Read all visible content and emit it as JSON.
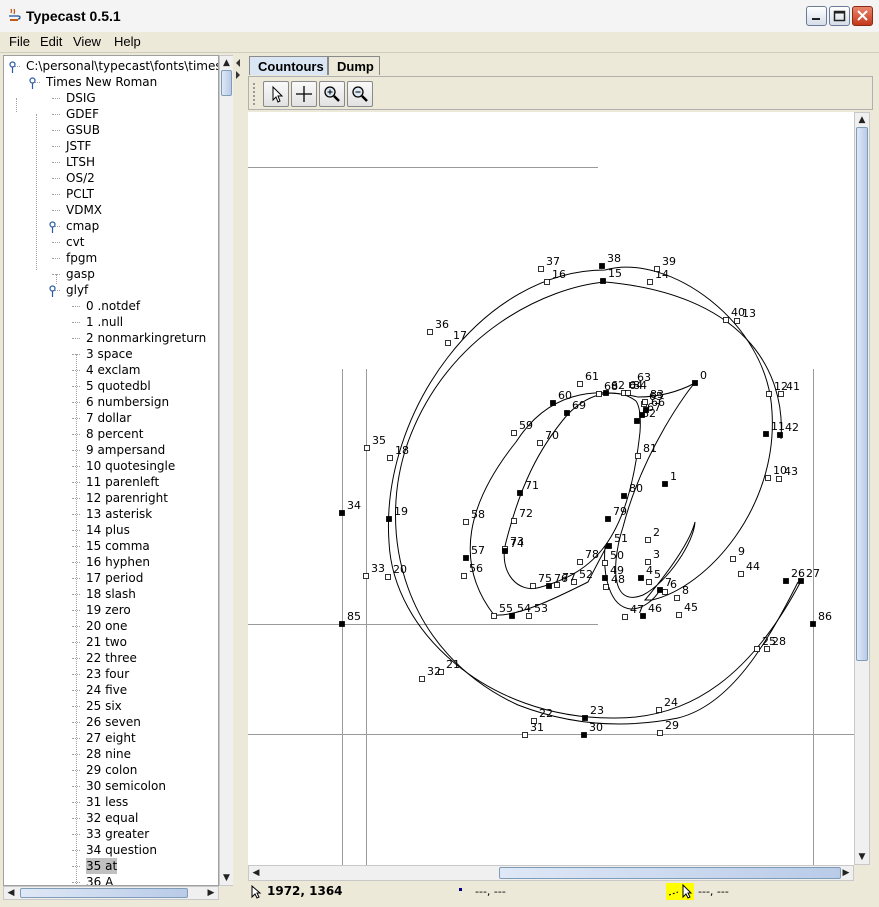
{
  "window": {
    "title": "Typecast 0.5.1"
  },
  "menu": [
    "File",
    "Edit",
    "View",
    "Help"
  ],
  "tree": {
    "root": "C:\\personal\\typecast\\fonts\\times.ttf",
    "font": "Times New Roman",
    "tables": [
      "DSIG",
      "GDEF",
      "GSUB",
      "JSTF",
      "LTSH",
      "OS/2",
      "PCLT",
      "VDMX",
      "cmap",
      "cvt",
      "fpgm",
      "gasp",
      "glyf"
    ],
    "glyphs": [
      "0 .notdef",
      "1 .null",
      "2 nonmarkingreturn",
      "3 space",
      "4 exclam",
      "5 quotedbl",
      "6 numbersign",
      "7 dollar",
      "8 percent",
      "9 ampersand",
      "10 quotesingle",
      "11 parenleft",
      "12 parenright",
      "13 asterisk",
      "14 plus",
      "15 comma",
      "16 hyphen",
      "17 period",
      "18 slash",
      "19 zero",
      "20 one",
      "21 two",
      "22 three",
      "23 four",
      "24 five",
      "25 six",
      "26 seven",
      "27 eight",
      "28 nine",
      "29 colon",
      "30 semicolon",
      "31 less",
      "32 equal",
      "33 greater",
      "34 question",
      "35 at",
      "36 A"
    ],
    "selected_glyph": "35 at"
  },
  "tabs": [
    {
      "label": "Countours",
      "active": true
    },
    {
      "label": "Dump",
      "active": false
    }
  ],
  "toolbar": [
    "pointer-tool",
    "crosshair-tool",
    "zoom-in-tool",
    "zoom-out-tool"
  ],
  "status": {
    "coords": "1972, 1364",
    "field2": "---, ---",
    "field3": "---, ---"
  },
  "glyph_points": [
    {
      "l": "0",
      "on": true
    },
    {
      "l": "1",
      "on": true
    },
    {
      "l": "2",
      "on": false
    },
    {
      "l": "3",
      "on": false
    },
    {
      "l": "4",
      "on": true
    },
    {
      "l": "5",
      "on": false
    },
    {
      "l": "6",
      "on": false
    },
    {
      "l": "7",
      "on": true
    },
    {
      "l": "8",
      "on": false
    },
    {
      "l": "9",
      "on": false
    },
    {
      "l": "10",
      "on": false
    },
    {
      "l": "11",
      "on": true
    },
    {
      "l": "12",
      "on": false
    },
    {
      "l": "13",
      "on": false
    },
    {
      "l": "14",
      "on": false
    },
    {
      "l": "15",
      "on": true
    },
    {
      "l": "16",
      "on": false
    },
    {
      "l": "17",
      "on": false
    },
    {
      "l": "18",
      "on": false
    },
    {
      "l": "19",
      "on": true
    },
    {
      "l": "20",
      "on": false
    },
    {
      "l": "21",
      "on": false
    },
    {
      "l": "22",
      "on": false
    },
    {
      "l": "23",
      "on": true
    },
    {
      "l": "24",
      "on": false
    },
    {
      "l": "25",
      "on": false
    },
    {
      "l": "26",
      "on": true
    },
    {
      "l": "27",
      "on": true
    },
    {
      "l": "28",
      "on": false
    },
    {
      "l": "29",
      "on": false
    },
    {
      "l": "30",
      "on": true
    },
    {
      "l": "31",
      "on": false
    },
    {
      "l": "32",
      "on": false
    },
    {
      "l": "33",
      "on": false
    },
    {
      "l": "34",
      "on": true
    },
    {
      "l": "35",
      "on": false
    },
    {
      "l": "36",
      "on": false
    },
    {
      "l": "37",
      "on": false
    },
    {
      "l": "38",
      "on": true
    },
    {
      "l": "39",
      "on": false
    },
    {
      "l": "40",
      "on": false
    },
    {
      "l": "41",
      "on": false
    },
    {
      "l": "42",
      "on": true
    },
    {
      "l": "43",
      "on": false
    },
    {
      "l": "44",
      "on": false
    },
    {
      "l": "45",
      "on": false
    },
    {
      "l": "46",
      "on": true
    },
    {
      "l": "47",
      "on": false
    },
    {
      "l": "48",
      "on": false
    },
    {
      "l": "49",
      "on": true
    },
    {
      "l": "50",
      "on": false
    },
    {
      "l": "51",
      "on": true
    },
    {
      "l": "52",
      "on": false
    },
    {
      "l": "53",
      "on": false
    },
    {
      "l": "54",
      "on": true
    },
    {
      "l": "55",
      "on": false
    },
    {
      "l": "56",
      "on": false
    },
    {
      "l": "57",
      "on": true
    },
    {
      "l": "58",
      "on": false
    },
    {
      "l": "59",
      "on": false
    },
    {
      "l": "60",
      "on": true
    },
    {
      "l": "61",
      "on": false
    },
    {
      "l": "62",
      "on": true
    },
    {
      "l": "63",
      "on": false
    },
    {
      "l": "64",
      "on": false
    },
    {
      "l": "65",
      "on": false
    },
    {
      "l": "66",
      "on": true
    },
    {
      "l": "67",
      "on": true
    },
    {
      "l": "68",
      "on": false
    },
    {
      "l": "69",
      "on": true
    },
    {
      "l": "70",
      "on": false
    },
    {
      "l": "71",
      "on": true
    },
    {
      "l": "72",
      "on": false
    },
    {
      "l": "73",
      "on": false
    },
    {
      "l": "74",
      "on": true
    },
    {
      "l": "75",
      "on": false
    },
    {
      "l": "76",
      "on": true
    },
    {
      "l": "77",
      "on": false
    },
    {
      "l": "78",
      "on": false
    },
    {
      "l": "79",
      "on": true
    },
    {
      "l": "80",
      "on": true
    },
    {
      "l": "81",
      "on": false
    },
    {
      "l": "82",
      "on": true
    },
    {
      "l": "83",
      "on": false
    },
    {
      "l": "84",
      "on": false
    },
    {
      "l": "85",
      "on": true
    },
    {
      "l": "86",
      "on": true
    }
  ]
}
